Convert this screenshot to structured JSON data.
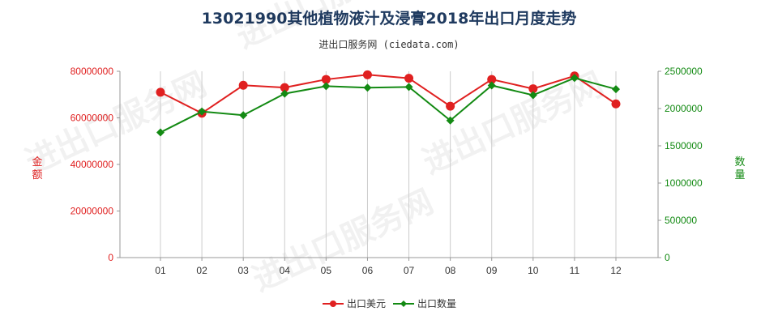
{
  "title": "13021990其他植物液汁及浸膏2018年出口月度走势",
  "subtitle": "进出口服务网 (ciedata.com)",
  "watermark": "进出口服务网",
  "colors": {
    "left_series": "#e02020",
    "right_series": "#138a13",
    "left_axis": "#e02020",
    "right_axis": "#138a13"
  },
  "chart_data": {
    "type": "line",
    "categories": [
      "01",
      "02",
      "03",
      "04",
      "05",
      "06",
      "07",
      "08",
      "09",
      "10",
      "11",
      "12"
    ],
    "ylabel_left": "金额",
    "ylabel_right": "数量",
    "ylim_left": [
      0,
      80000000
    ],
    "ylim_right": [
      0,
      2500000
    ],
    "yticks_left": [
      "0",
      "20000000",
      "40000000",
      "60000000",
      "80000000"
    ],
    "yticks_right": [
      "0",
      "500000",
      "1000000",
      "1500000",
      "2000000",
      "2500000"
    ],
    "series": [
      {
        "name": "出口美元",
        "axis": "left",
        "color": "#e02020",
        "marker": "circle",
        "values": [
          71000000,
          62000000,
          74000000,
          73000000,
          76500000,
          78500000,
          77000000,
          65000000,
          76500000,
          72500000,
          78000000,
          66000000
        ]
      },
      {
        "name": "出口数量",
        "axis": "right",
        "color": "#138a13",
        "marker": "diamond",
        "values": [
          1680000,
          1960000,
          1910000,
          2200000,
          2300000,
          2280000,
          2290000,
          1840000,
          2310000,
          2180000,
          2410000,
          2260000
        ]
      }
    ],
    "grid": "vertical",
    "legend": "bottom-center"
  }
}
